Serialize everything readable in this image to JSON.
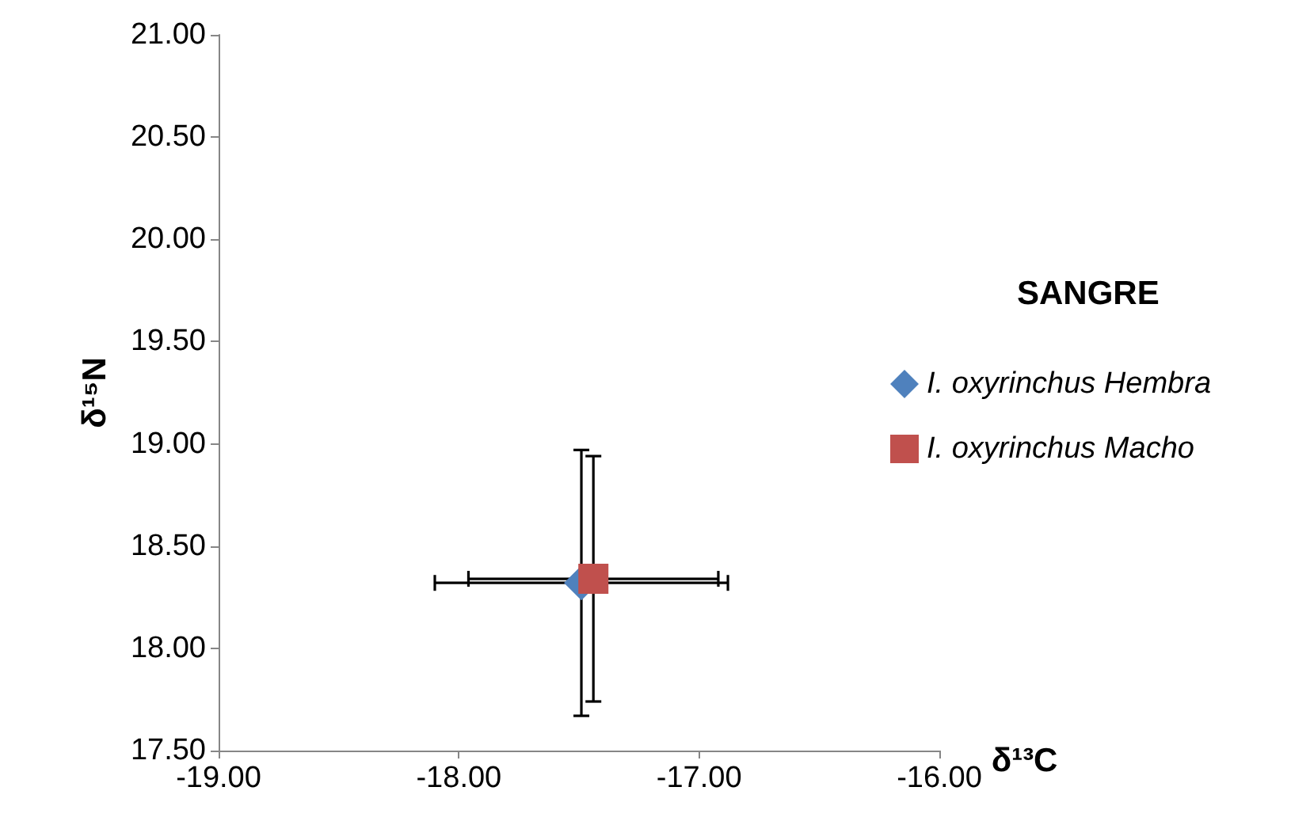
{
  "chart_data": {
    "type": "scatter",
    "xlabel": "δ¹³C",
    "ylabel": "δ¹⁵N",
    "legend_title": "SANGRE",
    "legend": "right",
    "grid": false,
    "xlim": [
      -19,
      -16
    ],
    "xticks": [
      {
        "value": -19,
        "label": "-19.00"
      },
      {
        "value": -18,
        "label": "-18.00"
      },
      {
        "value": -17,
        "label": "-17.00"
      },
      {
        "value": -16,
        "label": "-16.00"
      }
    ],
    "ylim": [
      17.5,
      21
    ],
    "yticks": [
      {
        "value": 17.5,
        "label": "17.50"
      },
      {
        "value": 18,
        "label": "18.00"
      },
      {
        "value": 18.5,
        "label": "18.50"
      },
      {
        "value": 19,
        "label": "19.00"
      },
      {
        "value": 19.5,
        "label": "19.50"
      },
      {
        "value": 20,
        "label": "20.00"
      },
      {
        "value": 20.5,
        "label": "20.50"
      },
      {
        "value": 21,
        "label": "21.00"
      }
    ],
    "series": [
      {
        "name": "I. oxyrinchus Hembra",
        "color": "#4f81bd",
        "marker": "diamond",
        "x": [
          -17.49
        ],
        "values": [
          18.32
        ],
        "errors": [
          0.65
        ],
        "xerrors": [
          0.61
        ]
      },
      {
        "name": "I. oxyrinchus Macho",
        "color": "#c0504d",
        "marker": "square",
        "x": [
          -17.44
        ],
        "values": [
          18.34
        ],
        "errors": [
          0.6
        ],
        "xerrors": [
          0.52
        ]
      }
    ]
  }
}
